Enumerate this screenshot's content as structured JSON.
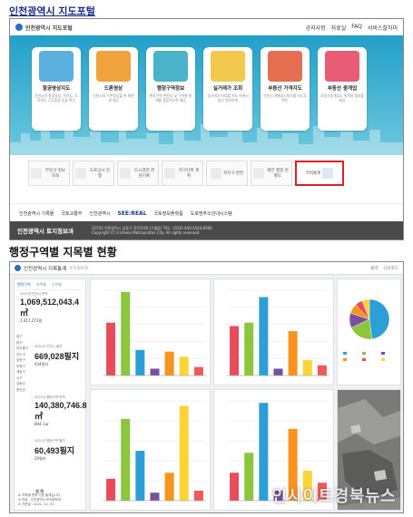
{
  "captions": {
    "top": "인천광역시 지도포털",
    "bottom": "행정구역별 지목별 현황"
  },
  "portal": {
    "logo": "인천광역시 지도포털",
    "nav": [
      "공지사항",
      "자료실",
      "FAQ",
      "서비스잘하미"
    ],
    "cards": [
      {
        "title": "항공영상지도",
        "desc": "인천시의 항공영상, 지적도, 도로지도 근무환경 등을 확인",
        "color": "#5bb0e0"
      },
      {
        "title": "드론영상",
        "desc": "인천시의 드론영상을 한 화면에 제공",
        "color": "#f0a33c"
      },
      {
        "title": "행정구역정보",
        "desc": "행정구역 변천사 및 구역별 통계를 종합적으로 제공",
        "color": "#4ab3c9"
      },
      {
        "title": "실거래가 조회",
        "desc": "실거래가 자료를 지도 위에서 쉽고 편리하게",
        "color": "#f2c94c"
      },
      {
        "title": "부동산 가격지도",
        "desc": "인천시 개별공시지가를 지도로 확인",
        "color": "#e76f51"
      },
      {
        "title": "부동산 중개업",
        "desc": "부동산중개업소 위치와 정보를 제공",
        "color": "#e85d75"
      }
    ],
    "tiles": [
      "부동산 정보 조회",
      "도로공사 진행",
      "도시경관 관련기록",
      "지구단위 계획",
      "자치구 변천",
      "예전 행정 현황도",
      "지적통계"
    ],
    "partners": [
      "인천광역시 기록물",
      "국토교통부",
      "인천광역시",
      "SEE:REAL",
      "국토정보플랫폼",
      "도로명주소안내시스템"
    ],
    "footer": {
      "org": "인천광역시 토지정보과",
      "address": "21554 인천광역시 남동구 정각로29 (구월동) TEL : (032) 440-4544,8366",
      "copyright": "Copyright (C) Incheon Metropolitan City. All rights reserved."
    }
  },
  "dashboard": {
    "title": "인천광역시 지목통계",
    "subtitle": "토지정보과",
    "tools": [
      "출력",
      "다운로드"
    ],
    "tabs": [
      "행정구역",
      "지목별",
      "소유별"
    ],
    "side_list": [
      "중구",
      "동구",
      "미추홀구",
      "연수구",
      "남동구",
      "부평구",
      "계양구",
      "서구",
      "강화군",
      "옹진군"
    ],
    "stats": [
      {
        "label": "2021년 인천시 면적",
        "value": "1,069,512,043.4㎡",
        "sub": "2,417,272필"
      },
      {
        "label": "2021년 인천시 필지",
        "value": "669,028필지",
        "sub": "434필지"
      },
      {
        "label": "2021년 행정구역 면적",
        "value": "140,380,746.8㎡",
        "sub": "894.1㎡"
      },
      {
        "label": "2021년 행정구역 필지",
        "value": "60,493필지",
        "sub": "29필지"
      }
    ],
    "footnote": {
      "title": "범 례",
      "lines": [
        "※ 지목별 면적 기준 통계입니다",
        "※ 자료 : 인천광역시 토지정보과",
        "※ 기준일 : 2021. 12. 31."
      ]
    },
    "watermark": "인사이트경북뉴스"
  },
  "chart_data": [
    {
      "type": "bar",
      "colors": [
        "#e84b5a",
        "#8cc63f",
        "#2b9fd6",
        "#7b4fa0",
        "#f7941d",
        "#fcd535",
        "#f15a5a"
      ],
      "values": [
        62,
        98,
        30,
        8,
        28,
        22,
        10
      ],
      "ylim": [
        0,
        100
      ]
    },
    {
      "type": "bar",
      "colors": [
        "#e84b5a",
        "#8cc63f",
        "#2b9fd6",
        "#7b4fa0",
        "#f7941d",
        "#fcd535",
        "#f15a5a"
      ],
      "values": [
        58,
        62,
        92,
        8,
        52,
        18,
        12
      ],
      "ylim": [
        0,
        100
      ]
    },
    {
      "type": "bar",
      "colors": [
        "#e84b5a",
        "#8cc63f",
        "#2b9fd6",
        "#7b4fa0",
        "#f7941d",
        "#fcd535",
        "#f15a5a"
      ],
      "values": [
        22,
        82,
        50,
        8,
        28,
        95,
        10
      ],
      "ylim": [
        0,
        100
      ]
    },
    {
      "type": "bar",
      "colors": [
        "#e84b5a",
        "#8cc63f",
        "#2b9fd6",
        "#7b4fa0",
        "#f7941d",
        "#fcd535",
        "#f15a5a"
      ],
      "values": [
        28,
        48,
        98,
        10,
        72,
        30,
        18
      ],
      "ylim": [
        0,
        100
      ]
    },
    {
      "type": "pie",
      "values": [
        48,
        20,
        12,
        8,
        6,
        6
      ],
      "colors": [
        "#2b9fd6",
        "#8cc63f",
        "#7b4fa0",
        "#f7941d",
        "#e84b5a",
        "#fcd535"
      ]
    }
  ]
}
